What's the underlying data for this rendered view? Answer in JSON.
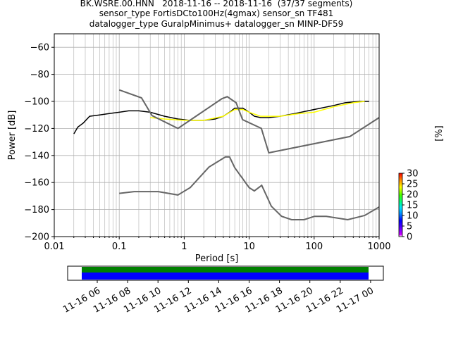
{
  "title": {
    "line1": "BK.WSRE.00.HNN   2018-11-16 -- 2018-11-16  (37/37 segments)",
    "line2": "sensor_type FortisDCto100Hz(4gmax) sensor_sn TF481",
    "line3": "datalogger_type GuralpMinimus+ datalogger_sn MINP-DF59"
  },
  "colorbar": {
    "label": "[%]",
    "ticks": [
      "0",
      "5",
      "10",
      "15",
      "20",
      "25",
      "30"
    ]
  },
  "timeline": {
    "ticks": [
      "11-16 06",
      "11-16 08",
      "11-16 10",
      "11-16 12",
      "11-16 14",
      "11-16 16",
      "11-16 18",
      "11-16 20",
      "11-16 22",
      "11-17 00"
    ],
    "colors": {
      "coverage": "#0000ff",
      "gaps": "#008000"
    }
  },
  "chart_data": {
    "type": "heatmap",
    "title": "BK.WSRE.00.HNN   2018-11-16 -- 2018-11-16  (37/37 segments)",
    "xlabel": "Period [s]",
    "ylabel": "Power [dB]",
    "xscale": "log",
    "xlim": [
      0.01,
      1000
    ],
    "ylim": [
      -200,
      -50
    ],
    "x_tick_labels": [
      "0.01",
      "0.1",
      "1",
      "10",
      "100",
      "1000"
    ],
    "y_ticks": [
      -200,
      -180,
      -160,
      -140,
      -120,
      -100,
      -80,
      -60
    ],
    "grid": true,
    "colorbar_range": [
      0,
      30
    ],
    "series": [
      {
        "name": "",
        "style": "mean",
        "color": "#000000",
        "x": [
          0.02,
          0.023,
          0.028,
          0.035,
          0.05,
          0.07,
          0.1,
          0.14,
          0.2,
          0.3,
          0.5,
          0.8,
          1.2,
          2,
          3,
          4,
          5,
          6,
          7,
          8,
          10,
          12,
          15,
          20,
          30,
          50,
          100,
          200,
          300,
          500,
          700
        ],
        "y": [
          -124,
          -119,
          -116,
          -111,
          -110,
          -109,
          -108,
          -107,
          -107,
          -108,
          -111,
          -113,
          -114,
          -114,
          -113,
          -111,
          -108,
          -105,
          -105,
          -105,
          -108,
          -111,
          -112,
          -112,
          -111,
          -109,
          -106,
          -103,
          -101,
          -100,
          -100
        ]
      },
      {
        "name": "",
        "style": "mode",
        "color": "#ffff00",
        "x": [
          0.3,
          0.5,
          1,
          2,
          4,
          6,
          8,
          10,
          15,
          30,
          60,
          100,
          200,
          400,
          600
        ],
        "y": [
          -112,
          -113,
          -114,
          -114,
          -111,
          -106,
          -106,
          -108,
          -111,
          -111,
          -109,
          -108,
          -104,
          -101,
          -100
        ]
      },
      {
        "name": "",
        "style": "noise model",
        "color": "#666666",
        "x": [
          0.1,
          0.22,
          0.32,
          0.8,
          3.8,
          4.6,
          6.3,
          7.9,
          15.4,
          20,
          354.8,
          1000
        ],
        "y": [
          -91.5,
          -97.4,
          -110.5,
          -120,
          -98,
          -96.5,
          -101,
          -113.5,
          -120,
          -138,
          -126,
          -112
        ]
      },
      {
        "name": "",
        "style": "noise model",
        "color": "#666666",
        "x": [
          0.1,
          0.17,
          0.4,
          0.8,
          1.24,
          2.4,
          4.3,
          5,
          6,
          10,
          12,
          15.6,
          21.9,
          31.6,
          45,
          70,
          101,
          154,
          328,
          600,
          1000
        ],
        "y": [
          -168,
          -166.7,
          -166.7,
          -169.2,
          -163.7,
          -148.6,
          -141.1,
          -141.1,
          -149.0,
          -163.8,
          -166.2,
          -162.1,
          -177.5,
          -185.0,
          -187.5,
          -187.5,
          -185.0,
          -185.0,
          -187.5,
          -184.4,
          -178.1
        ]
      }
    ],
    "density_band": {
      "x_range": [
        0.02,
        700
      ],
      "lower": [
        -127,
        -121,
        -117,
        -117,
        -116,
        -116,
        -118,
        -117,
        -115,
        -115,
        -114,
        -113,
        -109,
        -108,
        -108,
        -111,
        -112,
        -112,
        -112,
        -111,
        -108,
        -104,
        -102,
        -102
      ],
      "upper": [
        -121,
        -115,
        -103,
        -101,
        -98,
        -99,
        -101,
        -105,
        -109,
        -112,
        -112,
        -109,
        -105,
        -104,
        -104,
        -105,
        -109,
        -110,
        -108,
        -105,
        -101,
        -97,
        -94,
        -94
      ]
    }
  }
}
